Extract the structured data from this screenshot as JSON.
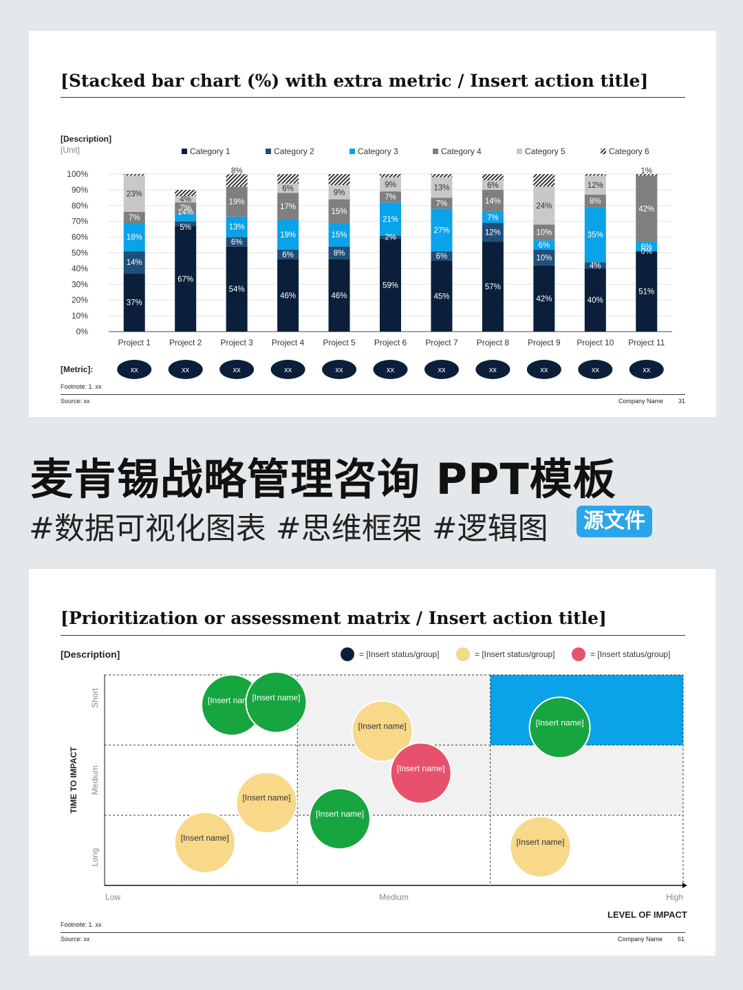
{
  "card1": {
    "title": "[Stacked bar chart (%) with extra metric / Insert action title]",
    "description": "[Description]",
    "unit": "[Unit]",
    "metric_label": "[Metric]:",
    "metric_values": [
      "xx",
      "xx",
      "xx",
      "xx",
      "xx",
      "xx",
      "xx",
      "xx",
      "xx",
      "xx",
      "xx"
    ],
    "footnote": "Footnote: 1. xx",
    "source": "Source: xx",
    "company": "Company Name",
    "page": "31"
  },
  "headline": "麦肯锡战略管理咨询 PPT模板",
  "tags": "#数据可视化图表 #思维框架 #逻辑图",
  "badge": "源文件",
  "card2": {
    "title": "[Prioritization or assessment matrix / Insert action title]",
    "description": "[Description]",
    "legend": [
      {
        "label": "= [Insert status/group]",
        "color": "#0b1f3a"
      },
      {
        "label": "= [Insert status/group]",
        "color": "#f8d889"
      },
      {
        "label": "= [Insert status/group]",
        "color": "#e8516b"
      }
    ],
    "y_axis_title": "TIME TO IMPACT",
    "y_levels": [
      "Short",
      "Medium",
      "Long"
    ],
    "x_axis_title": "LEVEL OF IMPACT",
    "x_levels": [
      "Low",
      "Medium",
      "High"
    ],
    "bubble_label": "[Insert name]",
    "footnote": "Footnote: 1. xx",
    "source": "Source: xx",
    "company": "Company Name",
    "page": "61"
  },
  "chart_data": [
    {
      "type": "bar",
      "stacked": true,
      "categories": [
        "Project 1",
        "Project 2",
        "Project 3",
        "Project 4",
        "Project 5",
        "Project 6",
        "Project 7",
        "Project 8",
        "Project 9",
        "Project 10",
        "Project 11"
      ],
      "ylim": [
        0,
        100
      ],
      "yticks": [
        "0%",
        "10%",
        "20%",
        "30%",
        "40%",
        "50%",
        "60%",
        "70%",
        "80%",
        "90%",
        "100%"
      ],
      "legend_position": "top",
      "series": [
        {
          "name": "Category 1",
          "color": "#0b1f3a",
          "values": [
            37,
            67,
            54,
            46,
            46,
            59,
            45,
            57,
            42,
            40,
            51
          ]
        },
        {
          "name": "Category 2",
          "color": "#1f4e79",
          "values": [
            14,
            3,
            6,
            6,
            8,
            2,
            6,
            12,
            10,
            4,
            0
          ]
        },
        {
          "name": "Category 3",
          "color": "#0aa2e8",
          "values": [
            18,
            5,
            13,
            19,
            15,
            21,
            27,
            7,
            6,
            35,
            6
          ]
        },
        {
          "name": "Category 4",
          "color": "#7f7f7f",
          "values": [
            7,
            7,
            19,
            17,
            15,
            7,
            7,
            14,
            10,
            8,
            42
          ]
        },
        {
          "name": "Category 5",
          "color": "#c8c8c8",
          "values": [
            23,
            4,
            0,
            6,
            9,
            9,
            13,
            6,
            24,
            12,
            0
          ]
        },
        {
          "name": "Category 6",
          "color": "hatch",
          "values": [
            1,
            4,
            8,
            6,
            7,
            2,
            2,
            4,
            8,
            1,
            1
          ]
        }
      ],
      "data_labels": [
        [
          "37%",
          "14%",
          "18%",
          "7%",
          "23%",
          ""
        ],
        [
          "67%",
          "",
          "14%|5%",
          "7%",
          "4%",
          ""
        ],
        [
          "54%",
          "6%",
          "13%",
          "19%",
          "",
          "8%"
        ],
        [
          "46%",
          "6%",
          "19%",
          "17%",
          "6%",
          ""
        ],
        [
          "46%",
          "8%",
          "15%",
          "15%",
          "9%",
          ""
        ],
        [
          "59%",
          "2%",
          "21%",
          "7%",
          "9%",
          ""
        ],
        [
          "45%",
          "6%",
          "27%",
          "7%",
          "13%",
          ""
        ],
        [
          "57%",
          "12%",
          "7%",
          "14%",
          "6%",
          ""
        ],
        [
          "42%",
          "10%",
          "6%",
          "10%",
          "24%",
          ""
        ],
        [
          "40%",
          "4%",
          "35%",
          "8%",
          "12%",
          ""
        ],
        [
          "51%",
          "0%",
          "6%",
          "42%",
          "",
          "1%"
        ]
      ]
    },
    {
      "type": "scatter",
      "subtype": "bubble-matrix",
      "xlim": [
        0,
        3
      ],
      "ylim": [
        0,
        3
      ],
      "x_levels": [
        "Low",
        "Medium",
        "High"
      ],
      "y_levels": [
        "Long",
        "Medium",
        "Short"
      ],
      "points": [
        {
          "x": 0.66,
          "y": 2.57,
          "group": "green",
          "color": "#16a53f"
        },
        {
          "x": 0.89,
          "y": 2.61,
          "group": "green",
          "color": "#16a53f"
        },
        {
          "x": 1.44,
          "y": 2.2,
          "group": "yellow",
          "color": "#f8d889"
        },
        {
          "x": 2.36,
          "y": 2.25,
          "group": "green",
          "color": "#16a53f"
        },
        {
          "x": 1.64,
          "y": 1.6,
          "group": "red",
          "color": "#e8516b"
        },
        {
          "x": 0.84,
          "y": 1.18,
          "group": "yellow",
          "color": "#f8d889"
        },
        {
          "x": 1.22,
          "y": 0.95,
          "group": "green",
          "color": "#16a53f"
        },
        {
          "x": 0.52,
          "y": 0.61,
          "group": "yellow",
          "color": "#f8d889"
        },
        {
          "x": 2.26,
          "y": 0.55,
          "group": "yellow",
          "color": "#f8d889"
        }
      ]
    }
  ]
}
